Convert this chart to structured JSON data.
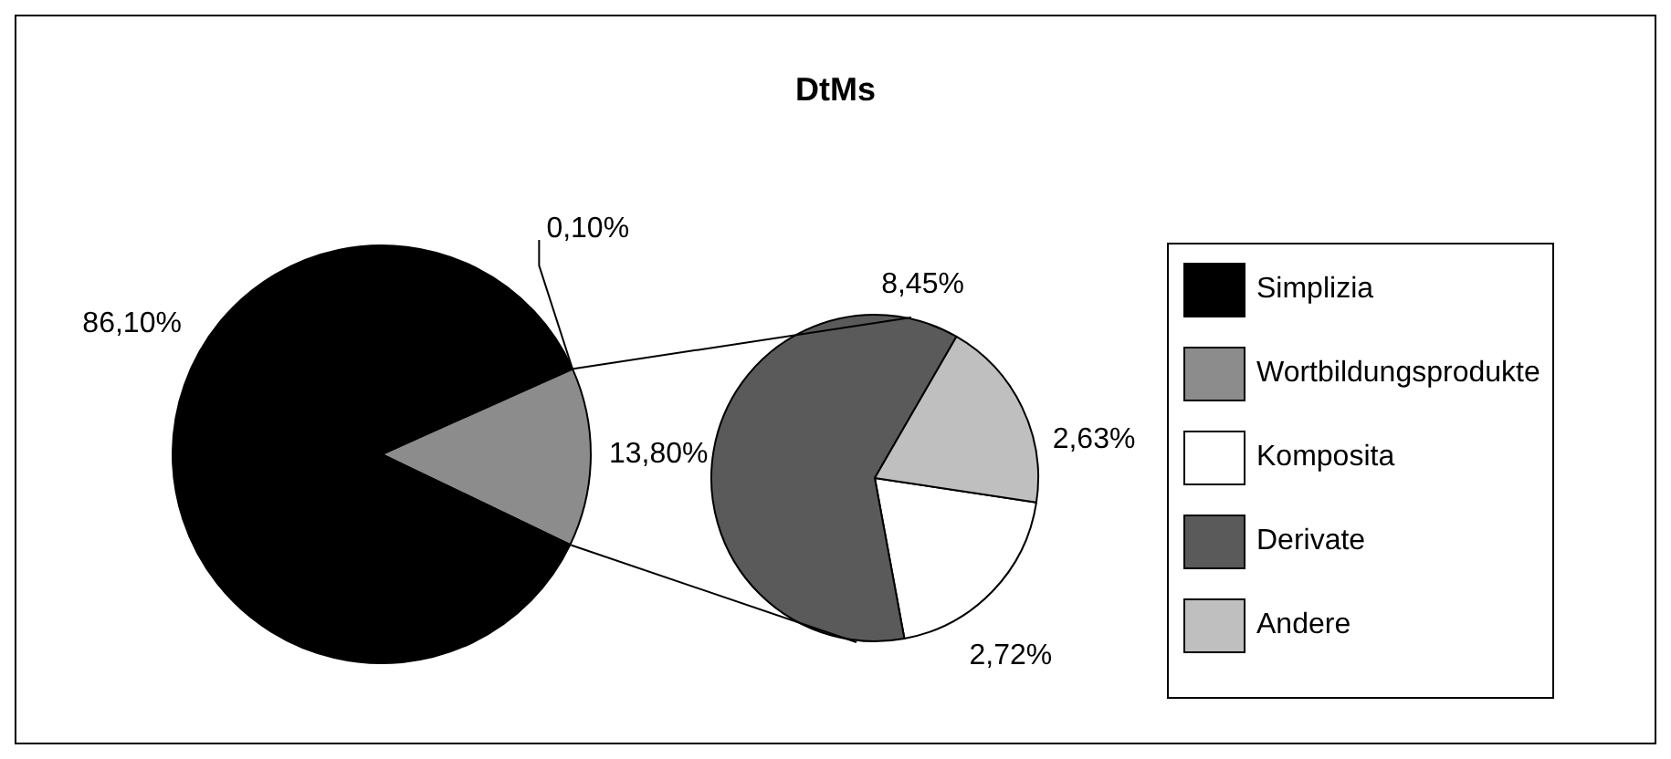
{
  "chart_data": [
    {
      "type": "pie",
      "title": "DtMs",
      "categories": [
        null,
        "Wortbildungsprodukte",
        "Simplizia"
      ],
      "values": [
        0.1,
        13.8,
        86.1
      ],
      "colors": [
        "#ffffff",
        "#8c8c8c",
        "#000000"
      ],
      "value_labels": [
        "0,10%",
        "13,80%",
        "86,10%"
      ],
      "legend": "right"
    },
    {
      "type": "pie",
      "categories": [
        "Komposita",
        "Derivate",
        "Andere"
      ],
      "values": [
        2.72,
        8.45,
        2.63
      ],
      "colors": [
        "#ffffff",
        "#5a5a5a",
        "#bfbfbf"
      ],
      "value_labels": [
        "2,72%",
        "8,45%",
        "2,63%"
      ],
      "legend": "right"
    }
  ]
}
